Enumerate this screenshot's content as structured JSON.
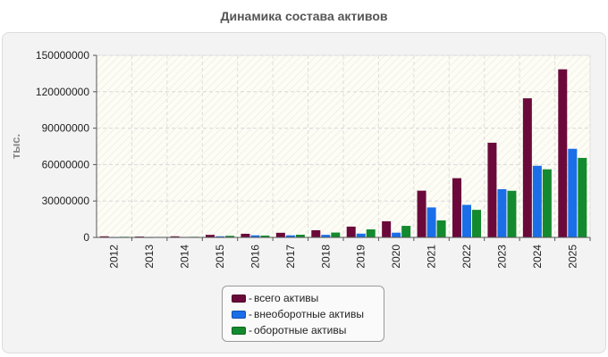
{
  "chart_data": {
    "type": "bar",
    "title": "Динамика состава активов",
    "xlabel": "",
    "ylabel": "тыс.",
    "ylim": [
      0,
      150000000
    ],
    "yticks": [
      "0",
      "30000000",
      "60000000",
      "90000000",
      "120000000",
      "150000000"
    ],
    "categories": [
      "2012",
      "2013",
      "2014",
      "2015",
      "2016",
      "2017",
      "2018",
      "2019",
      "2020",
      "2021",
      "2022",
      "2023",
      "2024",
      "2025"
    ],
    "series": [
      {
        "name": "всего активы",
        "color": "#6b0a3a",
        "values": [
          900000,
          700000,
          900000,
          2100000,
          3000000,
          3800000,
          5900000,
          8900000,
          13300000,
          38500000,
          48800000,
          78000000,
          114600000,
          138500000
        ]
      },
      {
        "name": "внеоборотные активы",
        "color": "#1a6ee8",
        "values": [
          300000,
          300000,
          400000,
          900000,
          1700000,
          1700000,
          2100000,
          3100000,
          3900000,
          24700000,
          26800000,
          39700000,
          59000000,
          73000000
        ]
      },
      {
        "name": "оборотные активы",
        "color": "#138a2e",
        "values": [
          500000,
          400000,
          500000,
          1300000,
          1500000,
          2200000,
          4000000,
          6600000,
          9500000,
          14000000,
          22700000,
          38400000,
          56100000,
          65500000
        ]
      }
    ],
    "grid": true,
    "legend_position": "bottom"
  }
}
